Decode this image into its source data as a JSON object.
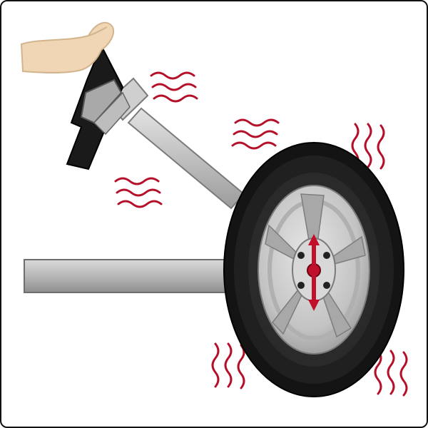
{
  "illustration": {
    "subject": "steering-wheel-vibration-from-unbalanced-wheel",
    "elements": [
      "hand",
      "steering-wheel",
      "steering-column",
      "axle",
      "tire",
      "rim",
      "hub",
      "vibration-lines",
      "up-down-arrow"
    ]
  },
  "colors": {
    "background": "#ffffff",
    "frame_border": "#111111",
    "skin": "#f0d6b4",
    "steering_wheel": "#1a1a1a",
    "column_metal": "#c8c8c8",
    "axle_metal": "#b4b4b4",
    "tire": "#141414",
    "tire_sidewall": "#2a2a2a",
    "rim": "#c9c9c9",
    "rim_dark": "#9a9a9a",
    "vibration": "#b5102a",
    "arrow": "#c0102a"
  },
  "icons": {
    "hand": "hand-icon",
    "vibration": "wavy-lines-icon",
    "arrow": "double-arrow-vertical-icon"
  }
}
